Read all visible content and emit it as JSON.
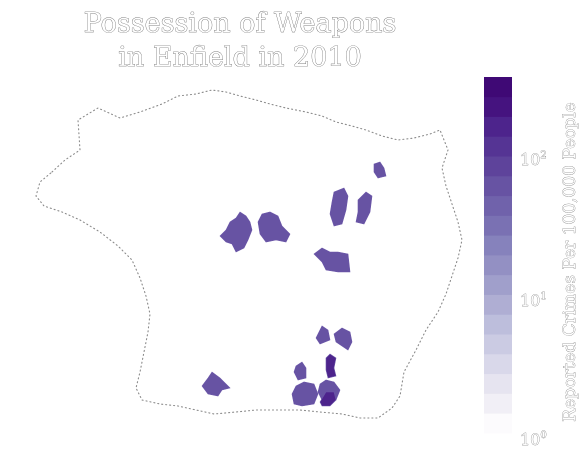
{
  "title_line1": "Possession of Weapons",
  "title_line2": "in Enfield in 2010",
  "colorbar": {
    "label": "Reported Crimes Per 100,000 People",
    "scale": "log",
    "min": 1,
    "max": 400,
    "steps": 20,
    "colors": [
      "#fcfbfd",
      "#f1eff6",
      "#e6e4f0",
      "#d9d8ea",
      "#cbcbe3",
      "#bdbedc",
      "#afaed3",
      "#a09fcb",
      "#9390c3",
      "#8682bc",
      "#7a71b3",
      "#7062ab",
      "#6753a3",
      "#5e439b",
      "#553494",
      "#4d248c",
      "#45137f",
      "#3f0975"
    ],
    "ticks": [
      {
        "value": 1,
        "base": "10",
        "exp": "0"
      },
      {
        "value": 10,
        "base": "10",
        "exp": "1"
      },
      {
        "value": 100,
        "base": "10",
        "exp": "2"
      }
    ]
  },
  "chart_data": {
    "type": "choropleth",
    "region": "Enfield",
    "year": 2010,
    "metric": "Possession of Weapons reported crimes per 100,000 people",
    "areas": [
      {
        "id": "area-1",
        "value": 55
      },
      {
        "id": "area-2",
        "value": 55
      },
      {
        "id": "area-3",
        "value": 60
      },
      {
        "id": "area-4",
        "value": 55
      },
      {
        "id": "area-5",
        "value": 70
      },
      {
        "id": "area-6",
        "value": 60
      },
      {
        "id": "area-7",
        "value": 60
      },
      {
        "id": "area-8",
        "value": 55
      },
      {
        "id": "area-9",
        "value": 150
      },
      {
        "id": "area-10",
        "value": 55
      },
      {
        "id": "area-11",
        "value": 60
      },
      {
        "id": "area-12",
        "value": 60
      },
      {
        "id": "area-13",
        "value": 180
      },
      {
        "id": "area-14",
        "value": 55
      }
    ]
  }
}
